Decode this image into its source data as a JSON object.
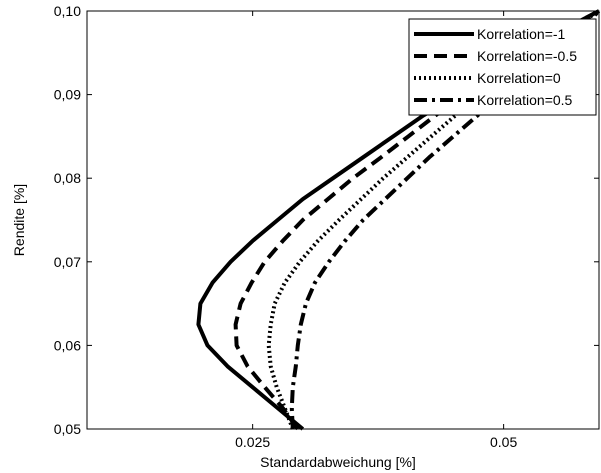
{
  "chart_data": {
    "type": "line",
    "title": "",
    "xlabel": "Standardabweichung [%]",
    "ylabel": "Rendite [%]",
    "xlim": [
      0.0085,
      0.0595
    ],
    "ylim": [
      0.05,
      0.1
    ],
    "x_ticks": [
      0.025,
      0.05
    ],
    "x_tick_labels": [
      "0.025",
      "0.05"
    ],
    "y_ticks": [
      0.05,
      0.06,
      0.07,
      0.08,
      0.09,
      0.1
    ],
    "y_tick_labels": [
      "0,05",
      "0,06",
      "0,07",
      "0,08",
      "0,09",
      "0,10"
    ],
    "grid": false,
    "legend_position": "top-right",
    "series": [
      {
        "name": "Korrelation=-1",
        "dash": "solid",
        "y": [
          0.05,
          0.0525,
          0.055,
          0.0575,
          0.06,
          0.0625,
          0.065,
          0.0675,
          0.07,
          0.0725,
          0.075,
          0.0775,
          0.08,
          0.0825,
          0.085,
          0.0875,
          0.09,
          0.0925,
          0.095,
          0.0975,
          0.1
        ],
        "x": [
          0.03,
          0.0275,
          0.025,
          0.0225,
          0.0205,
          0.0196,
          0.0198,
          0.021,
          0.0228,
          0.025,
          0.0275,
          0.03,
          0.033,
          0.036,
          0.039,
          0.042,
          0.0455,
          0.049,
          0.0525,
          0.0555,
          0.0595
        ]
      },
      {
        "name": "Korrelation=-0.5",
        "dash": "dashed",
        "y": [
          0.05,
          0.0525,
          0.055,
          0.0575,
          0.06,
          0.0625,
          0.065,
          0.0675,
          0.07,
          0.0725,
          0.075,
          0.0775,
          0.08,
          0.0825,
          0.085,
          0.0875,
          0.09,
          0.0925,
          0.095,
          0.0975,
          0.1
        ],
        "x": [
          0.0295,
          0.028,
          0.0262,
          0.0245,
          0.0234,
          0.0233,
          0.0238,
          0.0249,
          0.0262,
          0.028,
          0.03,
          0.0325,
          0.035,
          0.0378,
          0.0405,
          0.0432,
          0.046,
          0.049,
          0.0525,
          0.0555,
          0.0595
        ]
      },
      {
        "name": "Korrelation=0",
        "dash": "dotted",
        "y": [
          0.05,
          0.0525,
          0.055,
          0.0575,
          0.06,
          0.0625,
          0.065,
          0.0675,
          0.07,
          0.0725,
          0.075,
          0.0775,
          0.08,
          0.0825,
          0.085,
          0.0875,
          0.09,
          0.0925,
          0.095,
          0.0975,
          0.1
        ],
        "x": [
          0.029,
          0.0282,
          0.0274,
          0.0268,
          0.0266,
          0.0268,
          0.0272,
          0.0282,
          0.0297,
          0.0315,
          0.0336,
          0.0358,
          0.038,
          0.0404,
          0.0428,
          0.0452,
          0.0478,
          0.0505,
          0.0532,
          0.0562,
          0.0595
        ]
      },
      {
        "name": "Korrelation=0.5",
        "dash": "dashdot",
        "y": [
          0.05,
          0.0525,
          0.055,
          0.0575,
          0.06,
          0.0625,
          0.065,
          0.0675,
          0.07,
          0.0725,
          0.075,
          0.0775,
          0.08,
          0.0825,
          0.085,
          0.0875,
          0.09,
          0.0925,
          0.095,
          0.0975,
          0.1
        ],
        "x": [
          0.029,
          0.0289,
          0.029,
          0.0293,
          0.0295,
          0.0298,
          0.0303,
          0.0312,
          0.0326,
          0.0342,
          0.036,
          0.0382,
          0.0404,
          0.0426,
          0.045,
          0.0474,
          0.0498,
          0.0524,
          0.055,
          0.0574,
          0.0595
        ]
      }
    ]
  }
}
